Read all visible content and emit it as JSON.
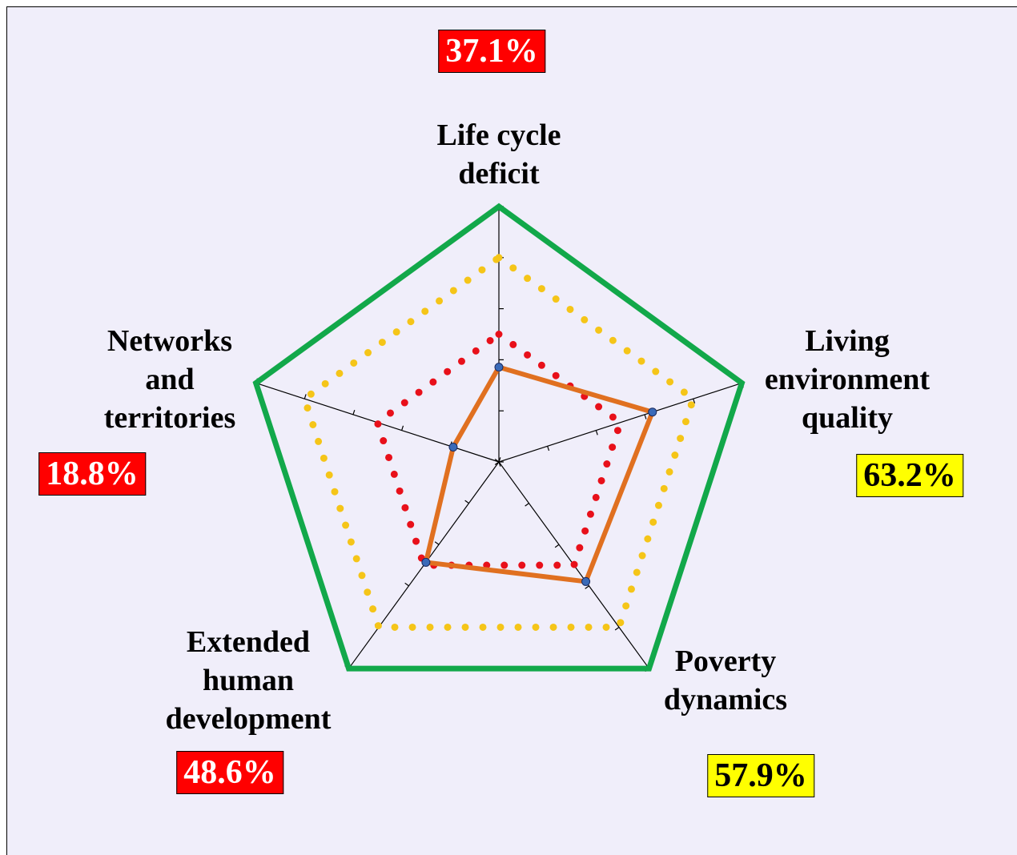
{
  "chart_data": {
    "type": "radar",
    "categories": [
      "Life cycle\ndeficit",
      "Living\nenvironment\nquality",
      "Poverty\ndynamics",
      "Extended\nhuman\ndevelopment",
      "Networks\nand\nterritories"
    ],
    "rlim": [
      0,
      100
    ],
    "rticks": [
      0,
      20,
      40,
      60,
      80,
      100
    ],
    "series": [
      {
        "color": "#12a84a",
        "style": "solid",
        "values": [
          100,
          100,
          100,
          100,
          100
        ]
      },
      {
        "color": "#f5c518",
        "style": "dotted",
        "values": [
          80,
          80,
          80,
          80,
          80
        ]
      },
      {
        "color": "#e8101a",
        "style": "dotted",
        "values": [
          50,
          50,
          50,
          50,
          50
        ]
      },
      {
        "color": "#e07020",
        "style": "solid",
        "markers": true,
        "values": [
          37.1,
          63.2,
          57.9,
          48.6,
          18.8
        ],
        "value_labels": [
          "37.1%",
          "63.2%",
          "57.9%",
          "48.6%",
          "18.8%"
        ],
        "value_label_colors": [
          "#ff0000",
          "#ffff00",
          "#ffff00",
          "#ff0000",
          "#ff0000"
        ]
      }
    ]
  }
}
